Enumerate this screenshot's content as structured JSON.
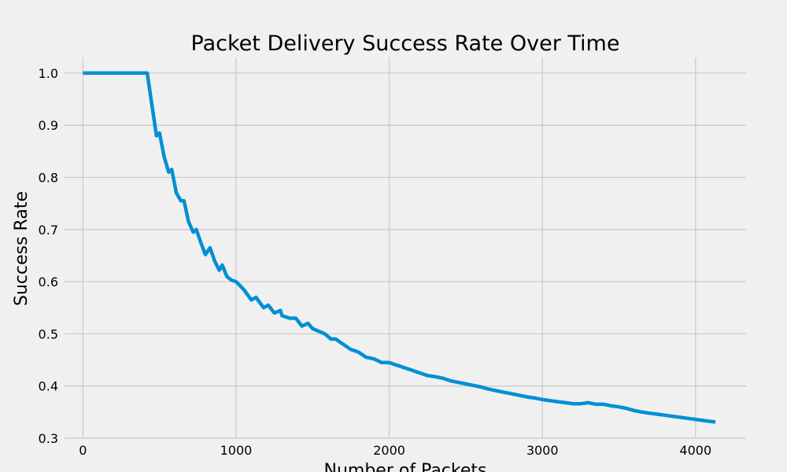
{
  "chart_data": {
    "type": "line",
    "title": "Packet Delivery Success Rate Over Time",
    "xlabel": "Number of Packets",
    "ylabel": "Success Rate",
    "xlim": [
      -120,
      4330
    ],
    "ylim": [
      0.3,
      1.03
    ],
    "xticks": [
      0,
      1000,
      2000,
      3000,
      4000
    ],
    "xtick_labels": [
      "0",
      "1000",
      "2000",
      "3000",
      "4000"
    ],
    "yticks": [
      0.3,
      0.4,
      0.5,
      0.6,
      0.7,
      0.8,
      0.9,
      1.0
    ],
    "ytick_labels": [
      "0.3",
      "0.4",
      "0.5",
      "0.6",
      "0.7",
      "0.8",
      "0.9",
      "1.0"
    ],
    "grid": true,
    "colors": {
      "background": "#f0f0f0",
      "grid": "#cbcbcb",
      "line": "#008fd5"
    },
    "series": [
      {
        "color": "#008fd5",
        "x": [
          0,
          100,
          200,
          300,
          400,
          420,
          450,
          480,
          500,
          530,
          560,
          580,
          610,
          640,
          660,
          690,
          720,
          740,
          770,
          800,
          830,
          860,
          890,
          910,
          940,
          970,
          1000,
          1050,
          1100,
          1130,
          1180,
          1210,
          1250,
          1290,
          1300,
          1350,
          1390,
          1430,
          1470,
          1500,
          1540,
          1580,
          1620,
          1650,
          1700,
          1750,
          1800,
          1850,
          1900,
          1950,
          2000,
          2050,
          2100,
          2150,
          2200,
          2250,
          2300,
          2350,
          2400,
          2450,
          2500,
          2550,
          2600,
          2650,
          2700,
          2750,
          2800,
          2850,
          2900,
          2950,
          3000,
          3050,
          3100,
          3150,
          3200,
          3250,
          3300,
          3350,
          3400,
          3450,
          3500,
          3550,
          3600,
          3650,
          3700,
          3750,
          3800,
          3850,
          3900,
          3950,
          4000,
          4050,
          4100,
          4130
        ],
        "y": [
          1.0,
          1.0,
          1.0,
          1.0,
          1.0,
          1.0,
          0.94,
          0.88,
          0.885,
          0.84,
          0.81,
          0.815,
          0.77,
          0.755,
          0.755,
          0.715,
          0.695,
          0.7,
          0.675,
          0.652,
          0.665,
          0.64,
          0.622,
          0.632,
          0.61,
          0.603,
          0.6,
          0.585,
          0.565,
          0.57,
          0.55,
          0.555,
          0.54,
          0.545,
          0.535,
          0.53,
          0.53,
          0.515,
          0.52,
          0.51,
          0.505,
          0.5,
          0.49,
          0.49,
          0.48,
          0.47,
          0.465,
          0.455,
          0.452,
          0.445,
          0.445,
          0.44,
          0.435,
          0.43,
          0.425,
          0.42,
          0.418,
          0.415,
          0.41,
          0.407,
          0.404,
          0.401,
          0.398,
          0.394,
          0.391,
          0.388,
          0.385,
          0.382,
          0.379,
          0.377,
          0.374,
          0.372,
          0.37,
          0.368,
          0.366,
          0.366,
          0.368,
          0.365,
          0.365,
          0.362,
          0.36,
          0.357,
          0.353,
          0.35,
          0.348,
          0.346,
          0.344,
          0.342,
          0.34,
          0.338,
          0.336,
          0.334,
          0.332,
          0.331
        ]
      }
    ]
  }
}
